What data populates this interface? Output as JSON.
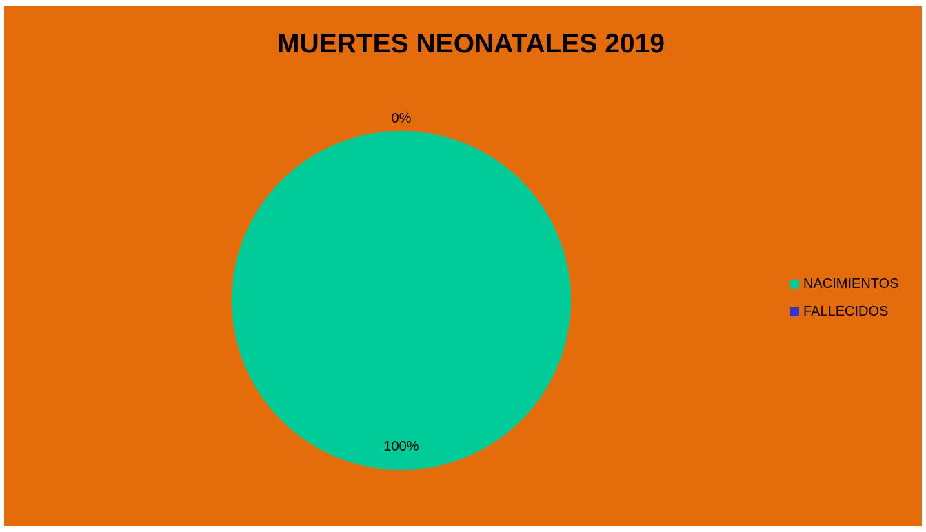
{
  "colors": {
    "background": "#e46c0a",
    "nacimientos": "#00cc99",
    "fallecidos": "#3333cc"
  },
  "chart_data": {
    "type": "pie",
    "title": "MUERTES NEONATALES 2019",
    "categories": [
      "NACIMIENTOS",
      "FALLECIDOS"
    ],
    "values": [
      100,
      0
    ],
    "data_labels": [
      "100%",
      "0%"
    ],
    "legend_position": "right"
  }
}
